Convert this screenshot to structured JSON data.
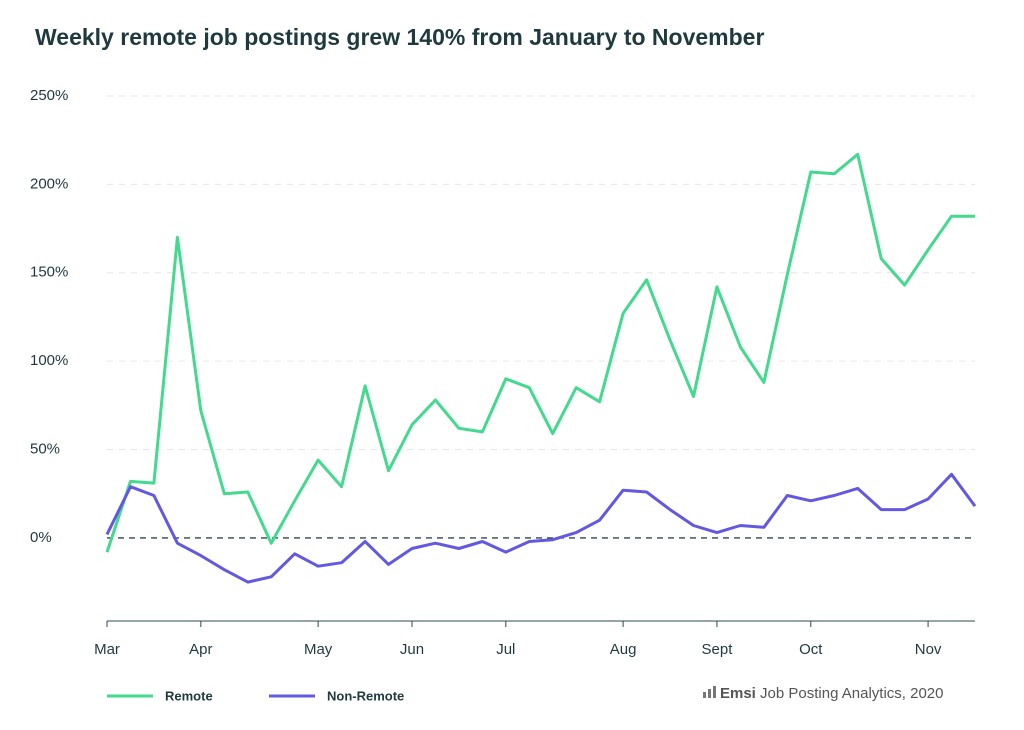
{
  "chart_data": {
    "type": "line",
    "title": "Weekly remote job postings grew 140% from January to November",
    "categories": [
      "Mar",
      null,
      null,
      null,
      "Apr",
      null,
      null,
      null,
      null,
      "May",
      null,
      null,
      null,
      "Jun",
      null,
      null,
      null,
      "Jul",
      null,
      null,
      null,
      null,
      "Aug",
      null,
      null,
      null,
      "Sept",
      null,
      null,
      null,
      "Oct",
      null,
      null,
      null,
      null,
      "Nov",
      null,
      null
    ],
    "series": [
      {
        "name": "Remote",
        "color": "#43d98e",
        "values": [
          -8,
          32,
          31,
          170,
          72,
          25,
          26,
          -3,
          21,
          44,
          29,
          86,
          38,
          64,
          78,
          62,
          60,
          90,
          85,
          59,
          85,
          77,
          127,
          146,
          112,
          80,
          142,
          108,
          88,
          149,
          207,
          206,
          217,
          158,
          143,
          163,
          182,
          182
        ]
      },
      {
        "name": "Non-Remote",
        "color": "#6358e2",
        "values": [
          2,
          29,
          24,
          -3,
          -10,
          -18,
          -25,
          -22,
          -9,
          -16,
          -14,
          -2,
          -15,
          -6,
          -3,
          -6,
          -2,
          -8,
          -2,
          -1,
          3,
          10,
          27,
          26,
          16,
          7,
          3,
          7,
          6,
          24,
          21,
          24,
          28,
          16,
          16,
          22,
          36,
          18
        ]
      }
    ],
    "ylim": [
      -47,
      250
    ],
    "yticks": [
      {
        "value": 0,
        "label": "0%"
      },
      {
        "value": 50,
        "label": "50%"
      },
      {
        "value": 100,
        "label": "100%"
      },
      {
        "value": 150,
        "label": "150%"
      },
      {
        "value": 200,
        "label": "200%"
      },
      {
        "value": 250,
        "label": "250%"
      }
    ],
    "grid": true,
    "legend": "bottom-left",
    "source": {
      "brand": "Emsi",
      "text": "Job Posting Analytics, 2020"
    }
  }
}
